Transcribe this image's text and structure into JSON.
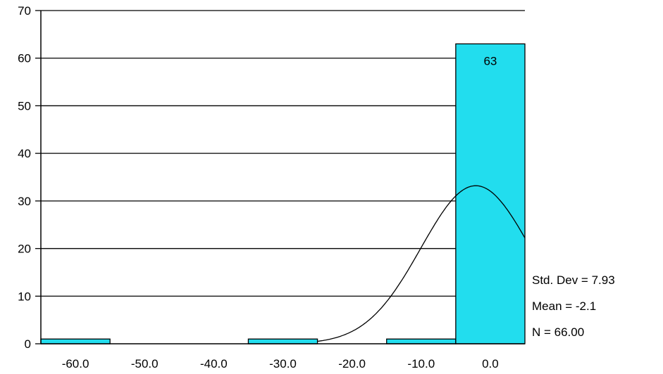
{
  "chart_data": {
    "type": "bar",
    "subtype": "histogram",
    "bins": [
      {
        "center": -60,
        "count": 1
      },
      {
        "center": -50,
        "count": 0
      },
      {
        "center": -40,
        "count": 0
      },
      {
        "center": -30,
        "count": 1
      },
      {
        "center": -20,
        "count": 0
      },
      {
        "center": -10,
        "count": 1
      },
      {
        "center": 0,
        "count": 63
      }
    ],
    "bin_width": 10,
    "data_labels": [
      {
        "center": 0,
        "text": "63"
      }
    ],
    "x_ticks": [
      "-60.0",
      "-50.0",
      "-40.0",
      "-30.0",
      "-20.0",
      "-10.0",
      "0.0"
    ],
    "x_tick_values": [
      -60,
      -50,
      -40,
      -30,
      -20,
      -10,
      0
    ],
    "y_ticks": [
      "0",
      "10",
      "20",
      "30",
      "40",
      "50",
      "60",
      "70"
    ],
    "y_tick_values": [
      0,
      10,
      20,
      30,
      40,
      50,
      60,
      70
    ],
    "xlim": [
      -65,
      5
    ],
    "ylim": [
      0,
      70
    ],
    "grid": "horizontal",
    "normal_curve": {
      "mean": -2.1,
      "std": 7.93,
      "n": 66,
      "bin_width": 10
    },
    "stats": {
      "std_dev": "Std. Dev = 7.93",
      "mean": "Mean = -2.1",
      "n": "N = 66.00"
    },
    "colors": {
      "bar_fill": "#22DDEE",
      "bar_stroke": "#000000",
      "grid": "#000000",
      "curve": "#000000"
    }
  }
}
